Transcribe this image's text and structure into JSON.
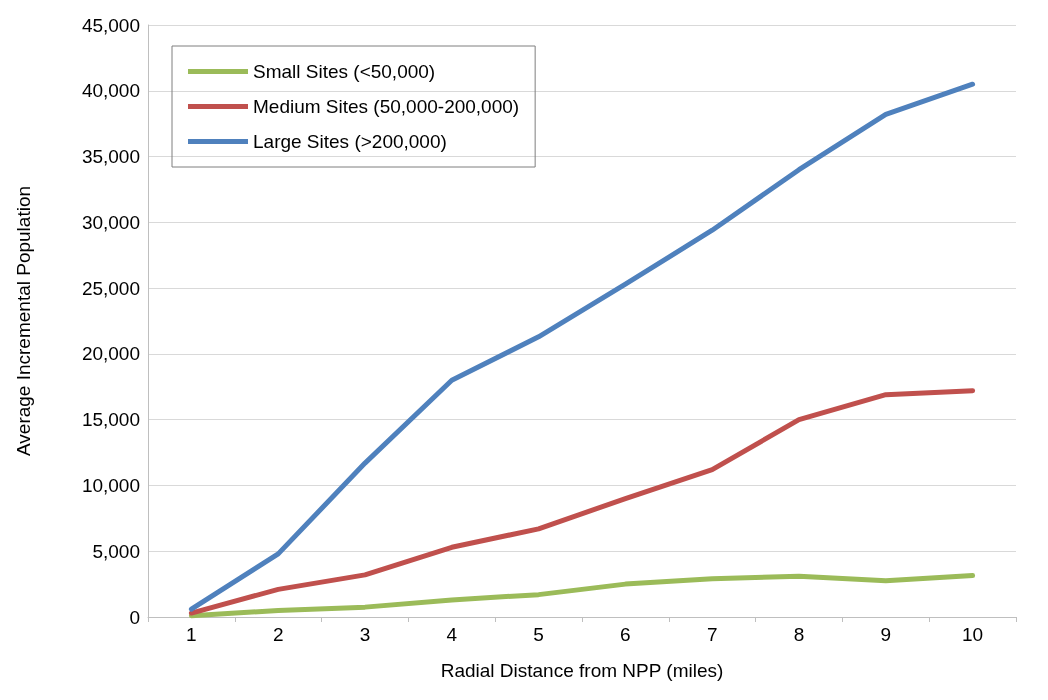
{
  "chart_data": {
    "type": "line",
    "xlabel": "Radial Distance from NPP (miles)",
    "ylabel": "Average Incremental Population",
    "categories": [
      "1",
      "2",
      "3",
      "4",
      "5",
      "6",
      "7",
      "8",
      "9",
      "10"
    ],
    "series": [
      {
        "name": "Small Sites (<50,000)",
        "color": "#9bbb59",
        "values": [
          100,
          500,
          750,
          1300,
          1700,
          2500,
          2900,
          3100,
          2750,
          3150
        ]
      },
      {
        "name": "Medium Sites (50,000-200,000)",
        "color": "#c0504d",
        "values": [
          300,
          2100,
          3200,
          5300,
          6700,
          9000,
          11200,
          15000,
          16900,
          17200
        ]
      },
      {
        "name": "Large Sites (>200,000)",
        "color": "#4f81bd",
        "values": [
          600,
          4800,
          11700,
          18000,
          21300,
          25300,
          29400,
          34000,
          38200,
          40500
        ]
      }
    ],
    "ylim": [
      0,
      45000
    ],
    "yticks": [
      0,
      {
        "value": 5000,
        "label": "5,000"
      },
      {
        "value": 10000,
        "label": "10,000"
      },
      {
        "value": 15000,
        "label": "15,000"
      },
      {
        "value": 20000,
        "label": "20,000"
      },
      {
        "value": 25000,
        "label": "25,000"
      },
      {
        "value": 30000,
        "label": "30,000"
      },
      {
        "value": 35000,
        "label": "35,000"
      },
      {
        "value": 40000,
        "label": "40,000"
      },
      {
        "value": 45000,
        "label": "45,000"
      }
    ],
    "grid": "y",
    "legend": "top left",
    "marker": "none",
    "line_style": "solid"
  }
}
